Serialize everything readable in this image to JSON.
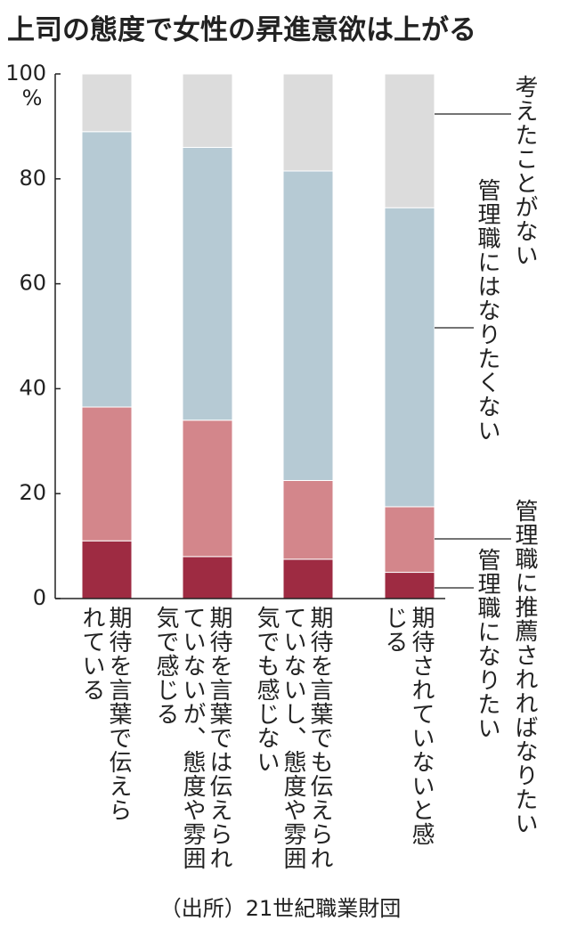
{
  "chart_data": {
    "type": "stacked-bar",
    "title": "上司の態度で女性の昇進意欲は上がる",
    "yunit": "%",
    "categories": [
      "期待を言葉で伝えられている",
      "期待を言葉では伝えられていないが、態度や雰囲気で感じる",
      "期待を言葉でも伝えられていないし、態度や雰囲気でも感じない",
      "期待されていないと感じる"
    ],
    "series": [
      {
        "name": "管理職になりたい",
        "color": "#9e2b42",
        "values": [
          11,
          8,
          7.5,
          5
        ]
      },
      {
        "name": "管理職に推薦されればなりたい",
        "color": "#d3868b",
        "values": [
          25.5,
          26,
          15,
          12.5
        ]
      },
      {
        "name": "管理職にはなりたくない",
        "color": "#b6cad4",
        "values": [
          52.5,
          52,
          59,
          57
        ]
      },
      {
        "name": "考えたことがない",
        "color": "#dcdcdc",
        "values": [
          11,
          14,
          18.5,
          25.5
        ]
      }
    ],
    "ylim": [
      0,
      100
    ],
    "yticks": [
      0,
      20,
      40,
      60,
      80,
      100
    ],
    "source": "（出所）21世紀職業財団"
  }
}
